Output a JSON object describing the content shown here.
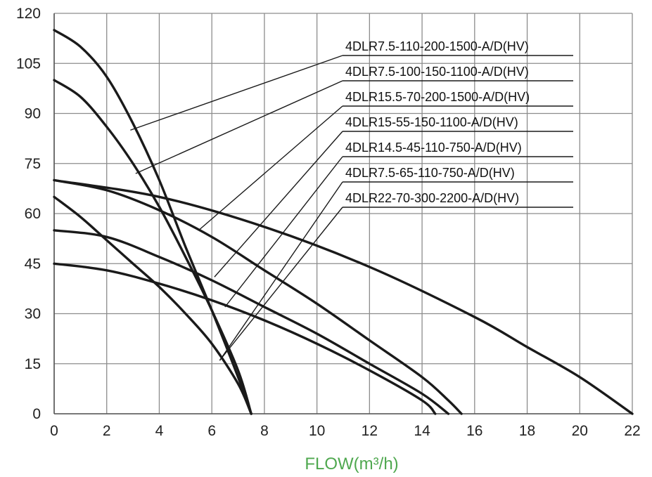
{
  "chart_data": {
    "type": "line",
    "title": "",
    "xlabel": "FLOW(m³/h)",
    "ylabel": "",
    "xlim": [
      0,
      22
    ],
    "ylim": [
      0,
      120
    ],
    "x_ticks": [
      "0",
      "2",
      "4",
      "6",
      "8",
      "10",
      "12",
      "14",
      "16",
      "18",
      "20",
      "22"
    ],
    "y_ticks": [
      "0",
      "15",
      "30",
      "45",
      "60",
      "75",
      "90",
      "105",
      "120"
    ],
    "grid": true,
    "legend_placement": "top-right",
    "colors": {
      "curve": "#1a1a1a",
      "grid": "#8c8c8c",
      "xlabel": "#4fa84f",
      "axis_text": "#222222"
    },
    "series": [
      {
        "name": "4DLR7.5-110-200-1500-A/D(HV)",
        "x": [
          0,
          1,
          2,
          3,
          4,
          5,
          6,
          7,
          7.5
        ],
        "y": [
          115,
          110,
          101,
          87,
          70,
          50,
          31,
          11,
          0
        ]
      },
      {
        "name": "4DLR7.5-100-150-1100-A/D(HV)",
        "x": [
          0,
          1,
          2,
          3,
          4,
          5,
          6,
          7,
          7.5
        ],
        "y": [
          100,
          95,
          86,
          75,
          62,
          47,
          31,
          13,
          0
        ]
      },
      {
        "name": "4DLR15.5-70-200-1500-A/D(HV)",
        "x": [
          0,
          2,
          4,
          6,
          8,
          10,
          12,
          14,
          15,
          15.5
        ],
        "y": [
          70,
          67,
          61,
          53,
          43,
          33,
          22,
          11,
          4,
          0
        ]
      },
      {
        "name": "4DLR15-55-150-1100-A/D(HV)",
        "x": [
          0,
          2,
          4,
          6,
          8,
          10,
          12,
          14,
          15
        ],
        "y": [
          55,
          53,
          47,
          40,
          32,
          24,
          15,
          6,
          0
        ]
      },
      {
        "name": "4DLR14.5-45-110-750-A/D(HV)",
        "x": [
          0,
          2,
          4,
          6,
          8,
          10,
          12,
          14,
          14.5
        ],
        "y": [
          45,
          43,
          39,
          34,
          28,
          21,
          13,
          4,
          0
        ]
      },
      {
        "name": "4DLR7.5-65-110-750-A/D(HV)",
        "x": [
          0,
          1,
          2,
          3,
          4,
          5,
          6,
          7,
          7.5
        ],
        "y": [
          65,
          59,
          52,
          45,
          38,
          30,
          21,
          9,
          0
        ]
      },
      {
        "name": "4DLR22-70-300-2200-A/D(HV)",
        "x": [
          0,
          4,
          8,
          12,
          16,
          18,
          20,
          22
        ],
        "y": [
          70,
          65,
          56,
          44,
          29,
          20,
          11,
          0
        ]
      }
    ],
    "leaders": [
      {
        "series": "4DLR7.5-110-200-1500-A/D(HV)",
        "x": 2.9,
        "y": 85,
        "legend_index": 0
      },
      {
        "series": "4DLR7.5-100-150-1100-A/D(HV)",
        "x": 3.1,
        "y": 72,
        "legend_index": 1
      },
      {
        "series": "4DLR15.5-70-200-1500-A/D(HV)",
        "x": 5.5,
        "y": 55,
        "legend_index": 2
      },
      {
        "series": "4DLR15-55-150-1100-A/D(HV)",
        "x": 6.1,
        "y": 41,
        "legend_index": 3
      },
      {
        "series": "4DLR14.5-45-110-750-A/D(HV)",
        "x": 6.5,
        "y": 32,
        "legend_index": 4
      },
      {
        "series": "4DLR7.5-65-110-750-A/D(HV)",
        "x": 6.3,
        "y": 16,
        "legend_index": 5
      },
      {
        "series": "4DLR22-70-300-2200-A/D(HV)",
        "x": 6.3,
        "y": 16,
        "legend_index": 6
      }
    ]
  }
}
